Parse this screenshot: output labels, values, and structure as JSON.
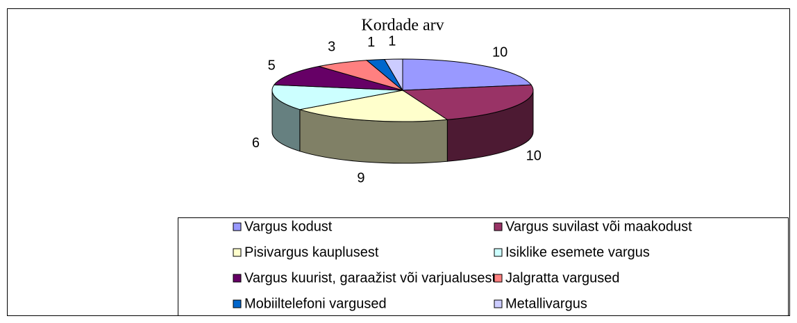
{
  "chart_data": {
    "type": "pie3d",
    "title": "Kordade arv",
    "categories": [
      "Vargus kodust",
      "Vargus suvilast või maakodust",
      "Pisivargus kauplusest",
      "Isiklike esemete vargus",
      "Vargus kuurist, garaažist või varjualusest",
      "Jalgratta vargused",
      "Mobiiltelefoni vargused",
      "Metallivargus"
    ],
    "values": [
      10,
      10,
      9,
      6,
      5,
      3,
      1,
      1
    ],
    "colors": [
      "#9999ff",
      "#993366",
      "#ffffcc",
      "#ccffff",
      "#660066",
      "#ff8080",
      "#0066cc",
      "#ccccff"
    ]
  }
}
